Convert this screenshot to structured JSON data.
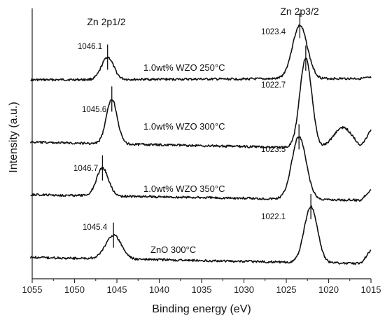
{
  "chart_data": {
    "type": "line",
    "xlabel": "Binding energy (eV)",
    "ylabel": "Intensity (a.u.)",
    "xlim": [
      1055,
      1015
    ],
    "x_reversed": true,
    "x_ticks": [
      1055,
      1050,
      1045,
      1040,
      1035,
      1030,
      1025,
      1020,
      1015
    ],
    "y_ticks_shown": false,
    "grid": false,
    "legend": "none",
    "annotations": {
      "zn_2p1_2": "Zn 2p1/2",
      "zn_2p3_2": "Zn 2p3/2"
    },
    "series": [
      {
        "name": "1.0wt% WZO 250°C",
        "peaks": [
          {
            "position": 1046.1,
            "label": "1046.1"
          },
          {
            "position": 1023.4,
            "label": "1023.4"
          }
        ]
      },
      {
        "name": "1.0wt% WZO 300°C",
        "peaks": [
          {
            "position": 1045.6,
            "label": "1045.6"
          },
          {
            "position": 1022.7,
            "label": "1022.7"
          }
        ]
      },
      {
        "name": "1.0wt% WZO 350°C",
        "peaks": [
          {
            "position": 1046.7,
            "label": "1046.7"
          },
          {
            "position": 1023.5,
            "label": "1023.5"
          }
        ]
      },
      {
        "name": "ZnO 300°C",
        "peaks": [
          {
            "position": 1045.4,
            "label": "1045.4"
          },
          {
            "position": 1022.1,
            "label": "1022.1"
          }
        ]
      }
    ]
  }
}
